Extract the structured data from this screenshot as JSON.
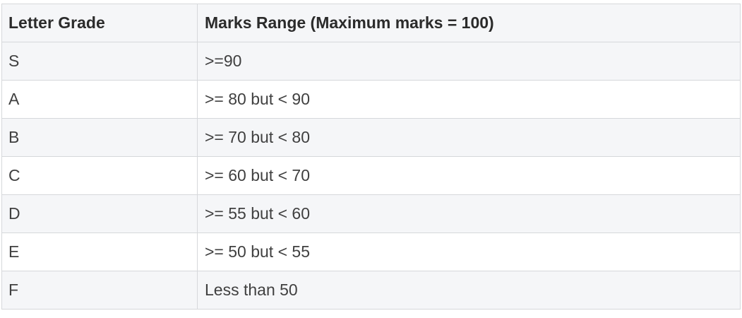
{
  "table": {
    "headers": [
      "Letter Grade",
      "Marks Range (Maximum marks = 100)"
    ],
    "rows": [
      [
        "S",
        ">=90"
      ],
      [
        "A",
        ">= 80 but < 90"
      ],
      [
        "B",
        ">= 70 but < 80"
      ],
      [
        "C",
        ">= 60 but < 70"
      ],
      [
        "D",
        ">= 55 but < 60"
      ],
      [
        "E",
        ">= 50 but < 55"
      ],
      [
        "F",
        "Less than 50"
      ]
    ]
  }
}
